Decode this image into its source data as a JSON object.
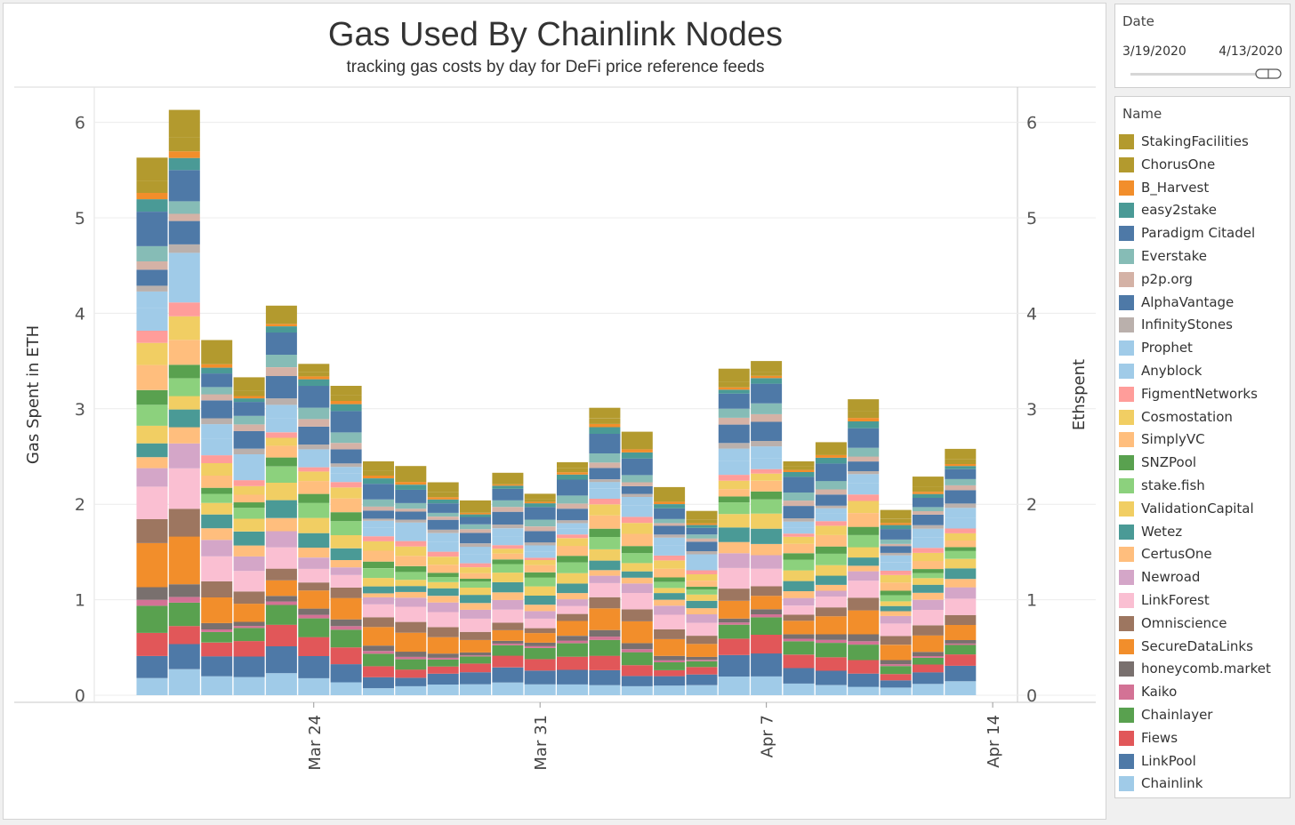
{
  "chart_data": {
    "type": "bar",
    "stacked": true,
    "title": "Gas Used By Chainlink Nodes",
    "subtitle": "tracking gas costs by day for DeFi price reference feeds",
    "ylabel": "Gas Spent in ETH",
    "ylabel_right": "Ethspent",
    "ylim": [
      0,
      6.4
    ],
    "yticks": [
      "0",
      "1",
      "2",
      "3",
      "4",
      "5",
      "6"
    ],
    "xticks": [
      {
        "label": "Mar 24",
        "date": "2020-03-24"
      },
      {
        "label": "Mar 31",
        "date": "2020-03-31"
      },
      {
        "label": "Apr 7",
        "date": "2020-04-07"
      },
      {
        "label": "Apr 14",
        "date": "2020-04-14"
      }
    ],
    "dates": [
      "2020-03-19",
      "2020-03-20",
      "2020-03-21",
      "2020-03-22",
      "2020-03-23",
      "2020-03-24",
      "2020-03-25",
      "2020-03-26",
      "2020-03-27",
      "2020-03-28",
      "2020-03-29",
      "2020-03-30",
      "2020-03-31",
      "2020-04-01",
      "2020-04-02",
      "2020-04-03",
      "2020-04-04",
      "2020-04-05",
      "2020-04-06",
      "2020-04-07",
      "2020-04-08",
      "2020-04-09",
      "2020-04-10",
      "2020-04-11",
      "2020-04-12",
      "2020-04-13"
    ],
    "totals": [
      5.63,
      6.13,
      3.72,
      3.33,
      4.08,
      3.47,
      3.24,
      2.45,
      2.4,
      2.23,
      2.04,
      2.33,
      2.11,
      2.44,
      3.01,
      2.76,
      2.18,
      1.93,
      3.42,
      3.5,
      2.45,
      2.65,
      3.1,
      1.94,
      2.29,
      2.58
    ],
    "series_order": [
      "Chainlink",
      "LinkPool",
      "Fiews",
      "Chainlayer",
      "Kaiko",
      "honeycomb.market",
      "SecureDataLinks",
      "Omniscience",
      "LinkForest",
      "Newroad",
      "CertusOne",
      "Wetez",
      "ValidationCapital",
      "stake.fish",
      "SNZPool",
      "SimplyVC",
      "Cosmostation",
      "FigmentNetworks",
      "Anyblock",
      "Prophet",
      "InfinityStones",
      "AlphaVantage",
      "p2p.org",
      "Everstake",
      "Paradigm Citadel",
      "easy2stake",
      "B_Harvest",
      "ChorusOne",
      "StakingFacilities"
    ],
    "base_weights": [
      0.05,
      0.06,
      0.05,
      0.05,
      0.01,
      0.02,
      0.07,
      0.04,
      0.06,
      0.04,
      0.03,
      0.04,
      0.04,
      0.04,
      0.025,
      0.04,
      0.035,
      0.02,
      0.04,
      0.035,
      0.015,
      0.05,
      0.02,
      0.03,
      0.06,
      0.02,
      0.01,
      0.02,
      0.04
    ]
  },
  "date_filter": {
    "title": "Date",
    "start": "3/19/2020",
    "end": "4/13/2020"
  },
  "legend": {
    "title": "Name",
    "items": [
      {
        "name": "StakingFacilities",
        "color": "#b39a2e"
      },
      {
        "name": "ChorusOne",
        "color": "#b39a2e"
      },
      {
        "name": "B_Harvest",
        "color": "#f28e2b"
      },
      {
        "name": "easy2stake",
        "color": "#4a9a96"
      },
      {
        "name": "Paradigm Citadel",
        "color": "#4e79a7"
      },
      {
        "name": "Everstake",
        "color": "#86bcb6"
      },
      {
        "name": "p2p.org",
        "color": "#d4b2a6"
      },
      {
        "name": "AlphaVantage",
        "color": "#4e79a7"
      },
      {
        "name": "InfinityStones",
        "color": "#bab0ac"
      },
      {
        "name": "Prophet",
        "color": "#a0cbe8"
      },
      {
        "name": "Anyblock",
        "color": "#a0cbe8"
      },
      {
        "name": "FigmentNetworks",
        "color": "#ff9d9a"
      },
      {
        "name": "Cosmostation",
        "color": "#f1ce63"
      },
      {
        "name": "SimplyVC",
        "color": "#ffbe7d"
      },
      {
        "name": "SNZPool",
        "color": "#59a14f"
      },
      {
        "name": "stake.fish",
        "color": "#8cd17d"
      },
      {
        "name": "ValidationCapital",
        "color": "#f1ce63"
      },
      {
        "name": "Wetez",
        "color": "#4a9a96"
      },
      {
        "name": "CertusOne",
        "color": "#ffbe7d"
      },
      {
        "name": "Newroad",
        "color": "#d4a6c8"
      },
      {
        "name": "LinkForest",
        "color": "#fabfd2"
      },
      {
        "name": "Omniscience",
        "color": "#9d7660"
      },
      {
        "name": "SecureDataLinks",
        "color": "#f28e2b"
      },
      {
        "name": "honeycomb.market",
        "color": "#79706e"
      },
      {
        "name": "Kaiko",
        "color": "#d37295"
      },
      {
        "name": "Chainlayer",
        "color": "#59a14f"
      },
      {
        "name": "Fiews",
        "color": "#e15759"
      },
      {
        "name": "LinkPool",
        "color": "#4e79a7"
      },
      {
        "name": "Chainlink",
        "color": "#a0cbe8"
      }
    ]
  }
}
